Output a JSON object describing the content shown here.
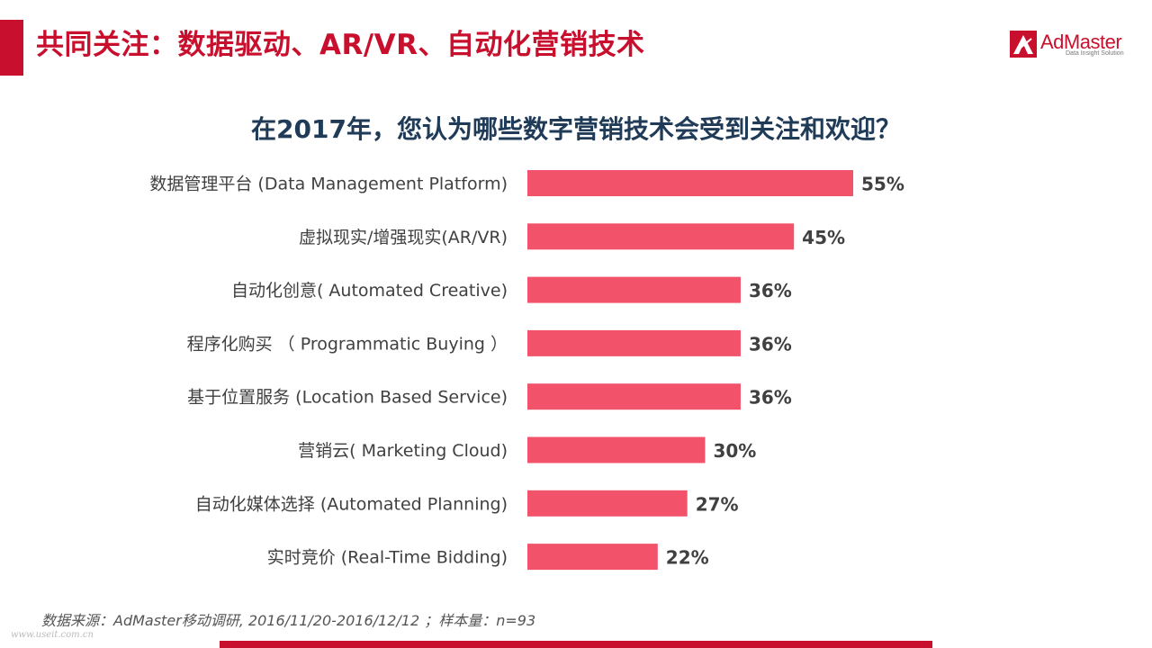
{
  "header": {
    "title": "共同关注：数据驱动、AR/VR、自动化营销技术",
    "logo_text": "AdMaster",
    "logo_tagline": "Data Insight Solution"
  },
  "colors": {
    "brand_red": "#c8102e",
    "bar_color": "#f2536a",
    "question_color": "#1f3b57"
  },
  "chart_data": {
    "type": "bar",
    "orientation": "horizontal",
    "title": "在2017年，您认为哪些数字营销技术会受到关注和欢迎？",
    "categories": [
      "数据管理平台 (Data Management Platform)",
      "虚拟现实/增强现实(AR/VR)",
      "自动化创意( Automated Creative)",
      "程序化购买 （ Programmatic Buying ）",
      "基于位置服务 (Location Based Service)",
      "营销云( Marketing Cloud)",
      "自动化媒体选择 (Automated Planning)",
      "实时竞价 (Real-Time Bidding)"
    ],
    "values": [
      55,
      45,
      36,
      36,
      36,
      30,
      27,
      22
    ],
    "value_labels": [
      "55%",
      "45%",
      "36%",
      "36%",
      "36%",
      "30%",
      "27%",
      "22%"
    ],
    "xlim": [
      0,
      55
    ],
    "grid": false,
    "legend": "none"
  },
  "footer": {
    "source": "数据来源：AdMaster移动调研, 2016/11/20-2016/12/12 ；样本量：n=93",
    "watermark": "www.useit.com.cn"
  }
}
